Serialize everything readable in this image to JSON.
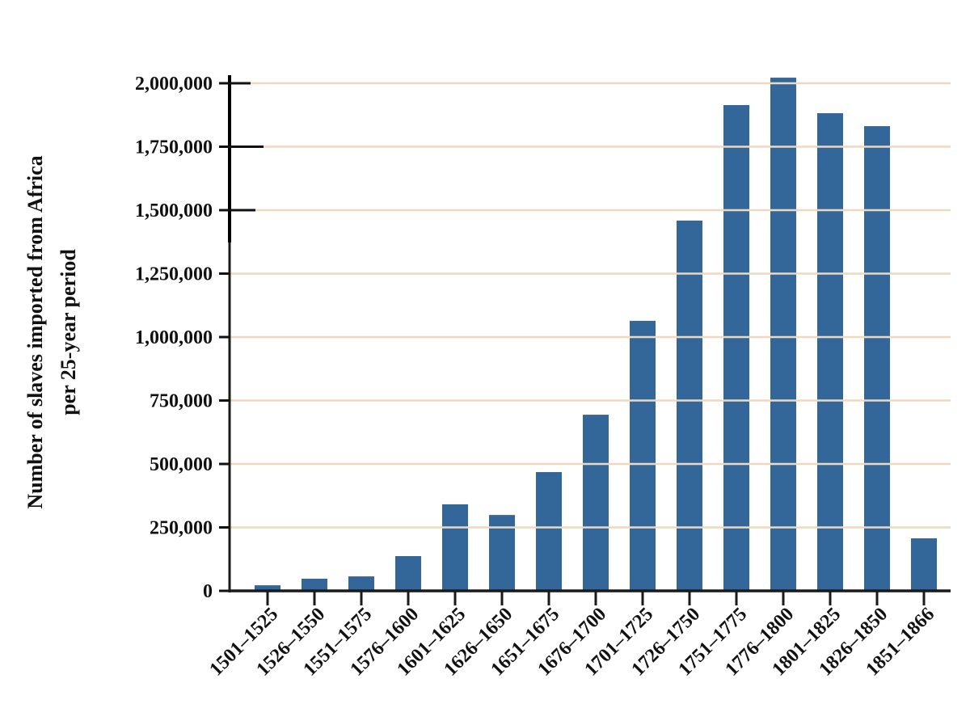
{
  "chart_data": {
    "type": "bar",
    "title": "",
    "xlabel": "",
    "ylabel": "Number of slaves imported from Africa\nper 25-year period",
    "ylabel_lines": [
      "Number of slaves imported from Africa",
      "per 25-year period"
    ],
    "categories": [
      "1501–1525",
      "1526–1550",
      "1551–1575",
      "1576–1600",
      "1601–1625",
      "1626–1650",
      "1651–1675",
      "1676–1700",
      "1701–1725",
      "1726–1750",
      "1751–1775",
      "1776–1800",
      "1801–1825",
      "1826–1850",
      "1851–1866"
    ],
    "values": [
      22000,
      48000,
      57000,
      137000,
      341000,
      299000,
      468000,
      694000,
      1064000,
      1459000,
      1914000,
      2022000,
      1882000,
      1831000,
      207000
    ],
    "ylim": [
      0,
      2000000
    ],
    "yticks": [
      0,
      250000,
      500000,
      750000,
      1000000,
      1250000,
      1500000,
      1750000,
      2000000
    ],
    "ytick_labels": [
      "0",
      "250,000",
      "500,000",
      "750,000",
      "1,000,000",
      "1,250,000",
      "1,500,000",
      "1,750,000",
      "2,000,000"
    ],
    "grid": true,
    "legend": null,
    "colors": {
      "bar": "#336699",
      "grid": "#EDD9C0",
      "axis": "#1a1a1a"
    }
  }
}
